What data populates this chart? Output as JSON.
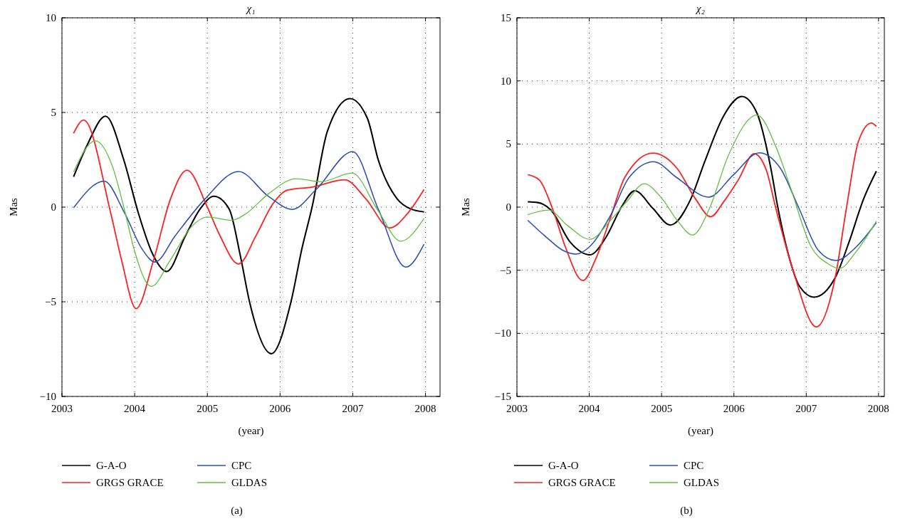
{
  "chart_data": [
    {
      "type": "line",
      "title": "χ₁",
      "xlabel": "(year)",
      "ylabel": "Mas",
      "annotations": [
        "(a)"
      ],
      "xlim": [
        2003,
        2008.2
      ],
      "xticks": [
        2003,
        2004,
        2005,
        2006,
        2007,
        2008
      ],
      "ylim": [
        -10,
        10
      ],
      "yticks": [
        -10,
        -5,
        0,
        5,
        10
      ],
      "grid": true,
      "line_style": "solid",
      "legend": "bottom",
      "series": [
        {
          "name": "G-A-O",
          "color": "#000000",
          "x": [
            2003.16,
            2003.35,
            2003.6,
            2003.85,
            2004.05,
            2004.25,
            2004.44,
            2004.7,
            2004.9,
            2005.09,
            2005.3,
            2005.45,
            2005.58,
            2005.88,
            2006.15,
            2006.3,
            2006.44,
            2006.65,
            2006.96,
            2007.2,
            2007.35,
            2007.61,
            2007.8,
            2007.98
          ],
          "values": [
            1.6,
            3.3,
            4.8,
            2.5,
            -0.3,
            -2.5,
            -3.4,
            -1.5,
            -0.1,
            0.57,
            -0.1,
            -2.5,
            -5,
            -7.74,
            -5,
            -2.2,
            0,
            4,
            5.73,
            4.7,
            2.5,
            0.44,
            -0.1,
            -0.25
          ]
        },
        {
          "name": "GRGS GRACE",
          "color": "#ff2020",
          "x": [
            2003.16,
            2003.3,
            2003.67,
            2003.82,
            2004.02,
            2004.26,
            2004.49,
            2004.72,
            2005.0,
            2005.16,
            2005.43,
            2005.67,
            2005.9,
            2006.1,
            2006.44,
            2006.89,
            2007.18,
            2007.51,
            2007.75,
            2007.98
          ],
          "values": [
            3.9,
            4.6,
            -0.3,
            -2.8,
            -5.36,
            -2.8,
            0.4,
            1.95,
            0,
            -1.4,
            -3,
            -1.5,
            0.17,
            0.9,
            1.06,
            1.44,
            0.44,
            -1.1,
            -0.35,
            0.93
          ]
        },
        {
          "name": "CPC",
          "color": "#2a4fb0",
          "x": [
            2003.16,
            2003.58,
            2003.86,
            2004.1,
            2004.28,
            2004.56,
            2004.96,
            2005.43,
            2005.84,
            2006.17,
            2006.5,
            2007.0,
            2007.35,
            2007.73,
            2007.98
          ],
          "values": [
            -0.04,
            1.37,
            -0.3,
            -2.2,
            -2.9,
            -1.5,
            0.4,
            1.88,
            0.57,
            -0.12,
            0.95,
            2.93,
            -0.1,
            -3.17,
            -1.96
          ]
        },
        {
          "name": "GLDAS",
          "color": "#60c040",
          "x": [
            2003.16,
            2003.46,
            2003.69,
            2003.87,
            2003.99,
            2004.23,
            2004.49,
            2004.79,
            2005.0,
            2005.33,
            2005.53,
            2005.84,
            2006.22,
            2006.56,
            2006.99,
            2007.35,
            2007.66,
            2007.98
          ],
          "values": [
            1.86,
            3.5,
            2.2,
            -0.3,
            -2.2,
            -4.19,
            -2.8,
            -1,
            -0.52,
            -0.7,
            -0.35,
            0.7,
            1.5,
            1.34,
            1.8,
            -0.2,
            -1.8,
            -0.6
          ]
        }
      ]
    },
    {
      "type": "line",
      "title": "χ₂",
      "xlabel": "(year)",
      "ylabel": "Mas",
      "annotations": [
        "(b)"
      ],
      "xlim": [
        2003,
        2008.08
      ],
      "xticks": [
        2003,
        2004,
        2005,
        2006,
        2007,
        2008
      ],
      "ylim": [
        -15,
        15
      ],
      "yticks": [
        -15,
        -10,
        -5,
        0,
        5,
        10,
        15
      ],
      "grid": true,
      "line_style": "solid",
      "legend": "bottom",
      "series": [
        {
          "name": "G-A-O",
          "color": "#000000",
          "x": [
            2003.15,
            2003.29,
            2003.47,
            2003.74,
            2004.01,
            2004.23,
            2004.45,
            2004.63,
            2004.88,
            2005.12,
            2005.4,
            2005.6,
            2005.86,
            2006.11,
            2006.32,
            2006.51,
            2006.61,
            2006.77,
            2006.9,
            2007.11,
            2007.4,
            2007.59,
            2007.79,
            2007.97
          ],
          "values": [
            0.42,
            0.36,
            -0.23,
            -2.8,
            -3.78,
            -2.4,
            0.06,
            1.3,
            -0.1,
            -1.42,
            0.6,
            3.66,
            7.25,
            8.77,
            7.43,
            3.1,
            -0.1,
            -4.1,
            -6.2,
            -7.13,
            -5.6,
            -2.8,
            0.6,
            2.85
          ]
        },
        {
          "name": "GRGS GRACE",
          "color": "#ff2020",
          "x": [
            2003.15,
            2003.31,
            2003.49,
            2003.67,
            2003.91,
            2004.09,
            2004.29,
            2004.49,
            2004.88,
            2005.21,
            2005.47,
            2005.68,
            2005.86,
            2006.06,
            2006.28,
            2006.45,
            2006.58,
            2006.82,
            2007.14,
            2007.4,
            2007.56,
            2007.72,
            2007.9,
            2007.97
          ],
          "values": [
            2.57,
            2.15,
            -0.1,
            -3.16,
            -5.82,
            -4.1,
            -0.9,
            2.34,
            4.28,
            3.1,
            0.64,
            -0.76,
            0.43,
            2.15,
            4.23,
            2.9,
            -0.1,
            -5.05,
            -9.49,
            -5.6,
            0.06,
            5.17,
            6.66,
            6.4
          ]
        },
        {
          "name": "CPC",
          "color": "#2a4fb0",
          "x": [
            2003.15,
            2003.41,
            2003.64,
            2003.82,
            2004.0,
            2004.29,
            2004.55,
            2004.89,
            2005.21,
            2005.65,
            2005.99,
            2006.35,
            2006.64,
            2006.9,
            2007.17,
            2007.41,
            2007.69,
            2007.97
          ],
          "values": [
            -1.04,
            -2.4,
            -3.44,
            -3.72,
            -3.16,
            -0.7,
            2.34,
            3.6,
            2.34,
            0.79,
            2.53,
            4.3,
            3.1,
            -0.1,
            -3.44,
            -4.23,
            -3.16,
            -1.23
          ]
        },
        {
          "name": "GLDAS",
          "color": "#60c040",
          "x": [
            2003.15,
            2003.44,
            2003.7,
            2004.01,
            2004.29,
            2004.52,
            2004.76,
            2005.01,
            2005.22,
            2005.43,
            2005.66,
            2005.92,
            2006.32,
            2006.58,
            2006.77,
            2007.07,
            2007.3,
            2007.46,
            2007.69,
            2007.97
          ],
          "values": [
            -0.6,
            -0.23,
            -1.46,
            -2.55,
            -1.08,
            0.45,
            1.85,
            0.64,
            -1.08,
            -2.21,
            -0.13,
            4.04,
            7.3,
            4.8,
            1.77,
            -3.16,
            -4.48,
            -4.86,
            -3.53,
            -1.12
          ]
        }
      ]
    }
  ]
}
